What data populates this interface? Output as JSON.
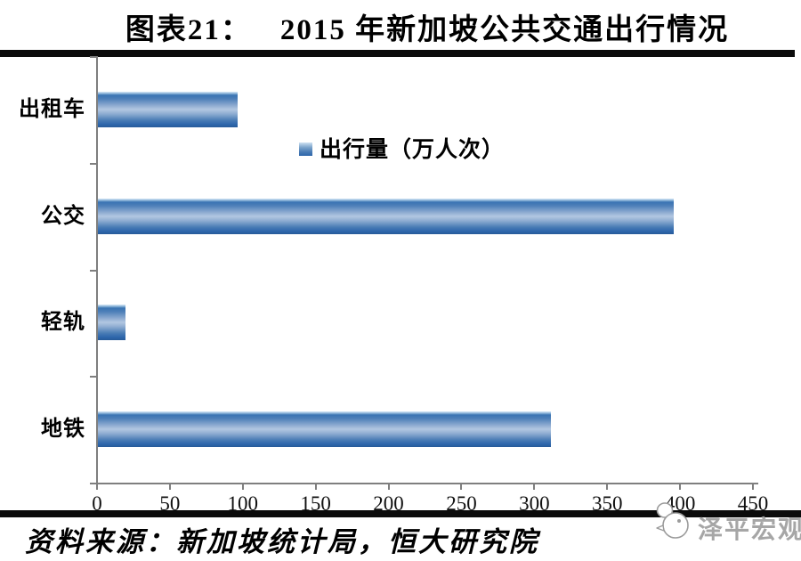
{
  "title": {
    "label": "图表21：",
    "text": "2015 年新加坡公共交通出行情况"
  },
  "chart_data": {
    "type": "bar",
    "orientation": "horizontal",
    "title": "2015 年新加坡公共交通出行情况",
    "legend_label": "出行量（万人次）",
    "legend_position": "top",
    "categories": [
      "出租车",
      "公交",
      "轻轨",
      "地铁"
    ],
    "values": [
      96,
      395,
      19,
      311
    ],
    "x_ticks": [
      0,
      50,
      100,
      150,
      200,
      250,
      300,
      350,
      400,
      450
    ],
    "xlim": [
      0,
      450
    ],
    "grid": false,
    "bar_color_dark": "#2D66AB",
    "bar_color_light": "#B2C7E1",
    "axis_color": "#7F7F7F"
  },
  "footer": {
    "source": "资料来源：新加坡统计局，恒大研究院",
    "watermark_text": "泽平宏观"
  }
}
